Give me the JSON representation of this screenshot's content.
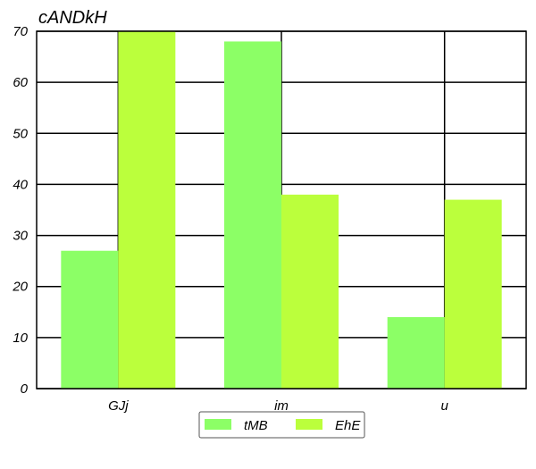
{
  "chart_data": {
    "type": "bar",
    "title": "cANDkH",
    "xlabel": "",
    "ylabel": "",
    "categories": [
      "GJj",
      "im",
      "u"
    ],
    "series": [
      {
        "name": "tMB",
        "values": [
          27,
          68,
          14
        ],
        "color": "#8cff66"
      },
      {
        "name": "EhE",
        "values": [
          70,
          38,
          37
        ],
        "color": "#bbff3c"
      }
    ],
    "ylim": [
      0,
      70
    ],
    "yticks": [
      0,
      10,
      20,
      30,
      40,
      50,
      60,
      70
    ],
    "grid": true,
    "legend_position": "bottom-center"
  }
}
